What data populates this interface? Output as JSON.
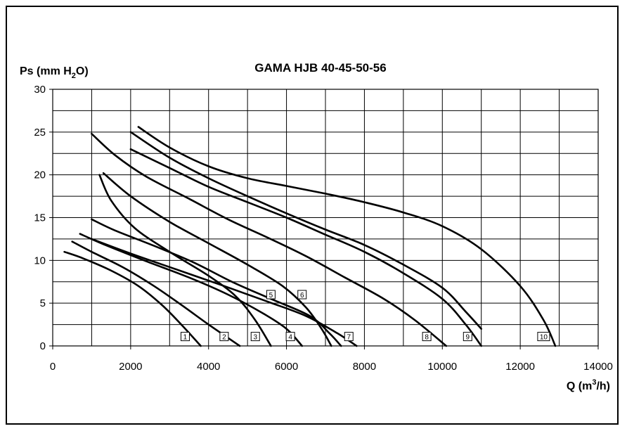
{
  "chart_data": {
    "type": "line",
    "title": "GAMA HJB 40-45-50-56",
    "ylabel": {
      "pre": "Ps (mm H",
      "sub": "2",
      "post": "O)"
    },
    "xlabel": {
      "pre": "Q (m",
      "sup": "3",
      "post": "/h)"
    },
    "xlim": [
      0,
      14000
    ],
    "ylim": [
      0,
      30
    ],
    "x_ticks": [
      0,
      2000,
      4000,
      6000,
      8000,
      10000,
      12000,
      14000
    ],
    "x_tick_labels": [
      "0",
      "2000",
      "4000",
      "6000",
      "8000",
      "10000",
      "12000",
      "14000"
    ],
    "y_ticks": [
      0,
      5,
      10,
      15,
      20,
      25,
      30
    ],
    "y_tick_labels": [
      "0",
      "5",
      "10",
      "15",
      "20",
      "25",
      "30"
    ],
    "grid": true,
    "series": [
      {
        "name": "1",
        "label_at": [
          3400,
          1.1
        ],
        "points": [
          [
            300,
            11.0
          ],
          [
            800,
            10.2
          ],
          [
            1500,
            8.8
          ],
          [
            2200,
            7.0
          ],
          [
            2800,
            4.8
          ],
          [
            3300,
            2.5
          ],
          [
            3800,
            0
          ]
        ]
      },
      {
        "name": "2",
        "label_at": [
          4400,
          1.1
        ],
        "points": [
          [
            500,
            12.2
          ],
          [
            1000,
            11.0
          ],
          [
            1800,
            9.2
          ],
          [
            2600,
            7.0
          ],
          [
            3300,
            4.8
          ],
          [
            4000,
            2.5
          ],
          [
            4800,
            0
          ]
        ]
      },
      {
        "name": "3",
        "label_at": [
          5200,
          1.1
        ],
        "points": [
          [
            1200,
            20.0
          ],
          [
            1500,
            17.0
          ],
          [
            2100,
            13.8
          ],
          [
            3000,
            11.0
          ],
          [
            4000,
            8.2
          ],
          [
            4700,
            5.8
          ],
          [
            5200,
            3.0
          ],
          [
            5600,
            0
          ]
        ]
      },
      {
        "name": "4",
        "label_at": [
          6100,
          1.1
        ],
        "points": [
          [
            700,
            13.1
          ],
          [
            1400,
            11.7
          ],
          [
            2400,
            9.9
          ],
          [
            3500,
            8.0
          ],
          [
            4500,
            6.0
          ],
          [
            5400,
            3.8
          ],
          [
            6000,
            2.0
          ],
          [
            6400,
            0
          ]
        ]
      },
      {
        "name": "5",
        "label_at": [
          5600,
          6.0
        ],
        "points": [
          [
            1000,
            14.8
          ],
          [
            1600,
            13.5
          ],
          [
            2600,
            11.7
          ],
          [
            3600,
            9.8
          ],
          [
            4600,
            7.5
          ],
          [
            5600,
            5.5
          ],
          [
            6600,
            3.5
          ],
          [
            7100,
            1.5
          ],
          [
            7400,
            0
          ]
        ]
      },
      {
        "name": "6",
        "label_at": [
          6400,
          6.0
        ],
        "points": [
          [
            1300,
            20.2
          ],
          [
            2000,
            17.5
          ],
          [
            3000,
            14.5
          ],
          [
            4000,
            12.0
          ],
          [
            5000,
            9.5
          ],
          [
            5900,
            7.0
          ],
          [
            6500,
            4.5
          ],
          [
            6900,
            2.0
          ],
          [
            7150,
            0
          ]
        ]
      },
      {
        "name": "7",
        "label_at": [
          7600,
          1.1
        ],
        "points": [
          [
            1000,
            12.5
          ],
          [
            2000,
            10.8
          ],
          [
            3200,
            8.9
          ],
          [
            4400,
            7.0
          ],
          [
            5500,
            5.2
          ],
          [
            6500,
            3.5
          ],
          [
            7300,
            1.5
          ],
          [
            7800,
            0
          ]
        ]
      },
      {
        "name": "8",
        "label_at": [
          9600,
          1.1
        ],
        "points": [
          [
            1000,
            24.8
          ],
          [
            1600,
            22.3
          ],
          [
            2400,
            19.8
          ],
          [
            3500,
            17.2
          ],
          [
            4500,
            14.8
          ],
          [
            5500,
            12.7
          ],
          [
            6500,
            10.5
          ],
          [
            7500,
            8.0
          ],
          [
            8500,
            5.5
          ],
          [
            9300,
            3.0
          ],
          [
            10100,
            0
          ]
        ]
      },
      {
        "name": "9",
        "label_at": [
          10650,
          1.1
        ],
        "points": [
          [
            2000,
            23.0
          ],
          [
            3000,
            20.8
          ],
          [
            4000,
            18.6
          ],
          [
            5000,
            16.8
          ],
          [
            6000,
            15.0
          ],
          [
            7000,
            13.0
          ],
          [
            8000,
            11.0
          ],
          [
            9000,
            8.5
          ],
          [
            10000,
            5.5
          ],
          [
            10600,
            2.5
          ],
          [
            11000,
            0
          ]
        ]
      },
      {
        "name": "10",
        "label_at": [
          12600,
          1.1
        ],
        "points": [
          [
            2200,
            25.6
          ],
          [
            3000,
            23.2
          ],
          [
            4000,
            21.0
          ],
          [
            5000,
            19.6
          ],
          [
            6000,
            18.7
          ],
          [
            7000,
            17.8
          ],
          [
            8000,
            16.8
          ],
          [
            9000,
            15.6
          ],
          [
            10000,
            14.0
          ],
          [
            11000,
            11.3
          ],
          [
            12000,
            7.0
          ],
          [
            12600,
            3.0
          ],
          [
            12900,
            0
          ]
        ]
      },
      {
        "name": "",
        "points": [
          [
            2000,
            25.0
          ],
          [
            3000,
            22.0
          ],
          [
            4000,
            19.6
          ],
          [
            5000,
            17.5
          ],
          [
            6000,
            15.5
          ],
          [
            7000,
            13.6
          ],
          [
            8000,
            11.8
          ],
          [
            9000,
            9.5
          ],
          [
            10000,
            6.8
          ],
          [
            10600,
            4.0
          ],
          [
            11000,
            2.0
          ]
        ]
      }
    ]
  }
}
